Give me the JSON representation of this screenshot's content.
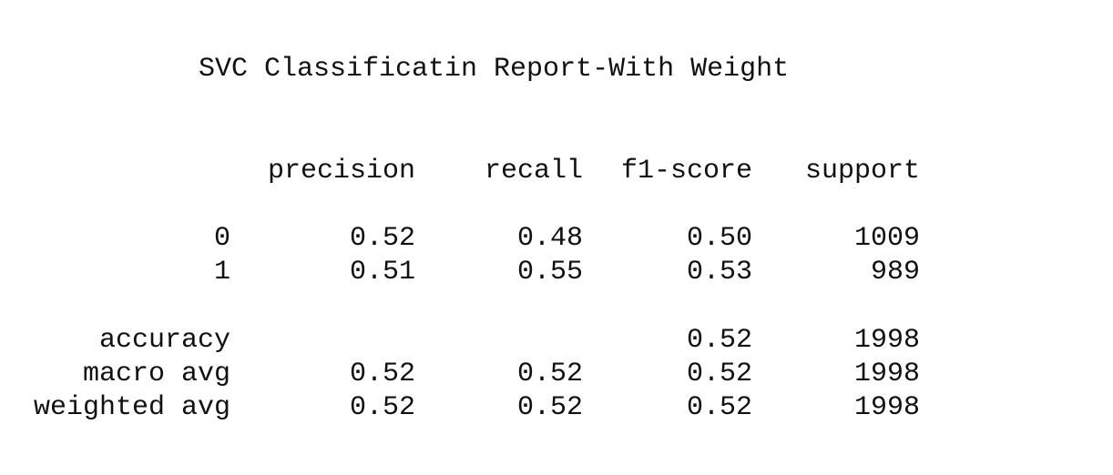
{
  "title": "SVC Classificatin Report-With Weight",
  "headers": {
    "precision": "precision",
    "recall": "recall",
    "f1_score": "f1-score",
    "support": "support"
  },
  "rows": {
    "class_0": {
      "label": "0",
      "precision": "0.52",
      "recall": "0.48",
      "f1_score": "0.50",
      "support": "1009"
    },
    "class_1": {
      "label": "1",
      "precision": "0.51",
      "recall": "0.55",
      "f1_score": "0.53",
      "support": "989"
    },
    "accuracy": {
      "label": "accuracy",
      "f1_score": "0.52",
      "support": "1998"
    },
    "macro_avg": {
      "label": "macro avg",
      "precision": "0.52",
      "recall": "0.52",
      "f1_score": "0.52",
      "support": "1998"
    },
    "weighted_avg": {
      "label": "weighted avg",
      "precision": "0.52",
      "recall": "0.52",
      "f1_score": "0.52",
      "support": "1998"
    }
  }
}
